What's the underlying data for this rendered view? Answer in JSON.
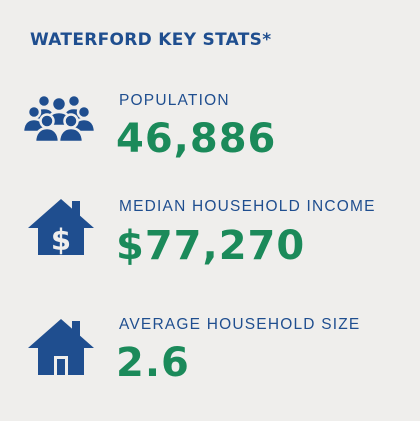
{
  "title": "WATERFORD KEY STATS*",
  "colors": {
    "background": "#efeeec",
    "blue": "#1f4e8f",
    "green": "#1b8a5a"
  },
  "stats": [
    {
      "icon": "people-group-icon",
      "label": "POPULATION",
      "value": "46,886"
    },
    {
      "icon": "house-dollar-icon",
      "label": "MEDIAN HOUSEHOLD INCOME",
      "value": "$77,270"
    },
    {
      "icon": "house-icon",
      "label": "AVERAGE HOUSEHOLD SIZE",
      "value": "2.6"
    }
  ]
}
